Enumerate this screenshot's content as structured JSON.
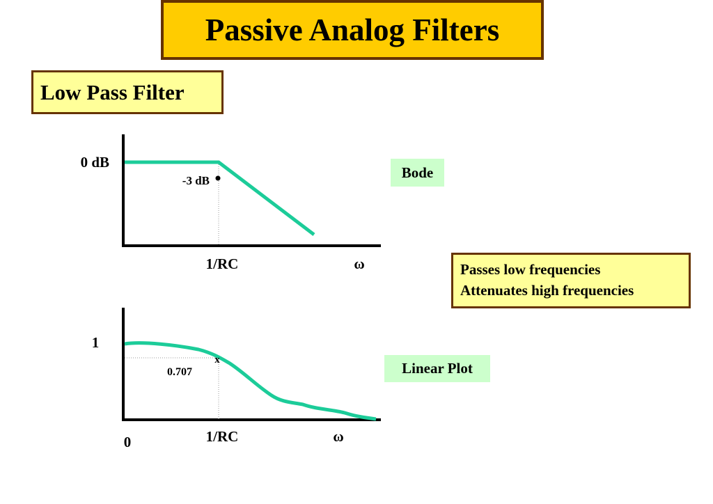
{
  "title": "Passive Analog Filters",
  "subtitle": "Low Pass Filter",
  "description": {
    "line1": "Passes low frequencies",
    "line2": "Attenuates high frequencies"
  },
  "colors": {
    "title_bg": "#ffcc00",
    "box_border": "#663300",
    "subtitle_bg": "#ffff99",
    "tag_bg": "#ccffcc",
    "curve": "#1ccc99"
  },
  "bode_plot": {
    "tag": "Bode",
    "y_label": "0 dB",
    "x_tick": "1/RC",
    "x_axis_symbol": "ω",
    "point_label": "-3 dB"
  },
  "linear_plot": {
    "tag": "Linear Plot",
    "y_label_top": "1",
    "origin_label": "0",
    "level_label": "0.707",
    "point_marker": "x",
    "x_tick": "1/RC",
    "x_axis_symbol": "ω"
  }
}
